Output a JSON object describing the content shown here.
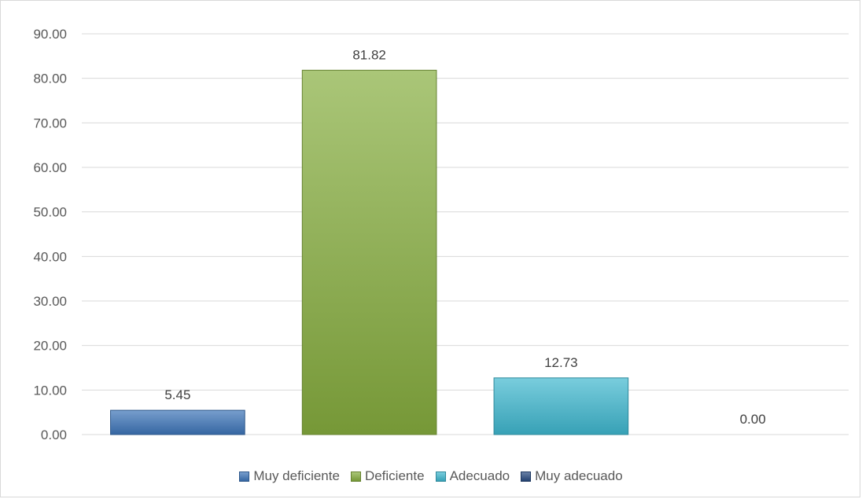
{
  "chart_data": {
    "type": "bar",
    "title": "",
    "xlabel": "",
    "ylabel": "",
    "categories": [
      "Muy deficiente",
      "Deficiente",
      "Adecuado",
      "Muy adecuado"
    ],
    "values": [
      5.45,
      81.82,
      12.73,
      0.0
    ],
    "data_labels": [
      "5.45",
      "81.82",
      "12.73",
      "0.00"
    ],
    "ylim": [
      0,
      90
    ],
    "yticks": [
      "0.00",
      "10.00",
      "20.00",
      "30.00",
      "40.00",
      "50.00",
      "60.00",
      "70.00",
      "80.00",
      "90.00"
    ],
    "grid": true,
    "legend_position": "bottom",
    "colors": {
      "Muy deficiente": "#3c74b8",
      "Deficiente": "#86ad3e",
      "Adecuado": "#3fb7cf",
      "Muy adecuado": "#284a80"
    }
  }
}
